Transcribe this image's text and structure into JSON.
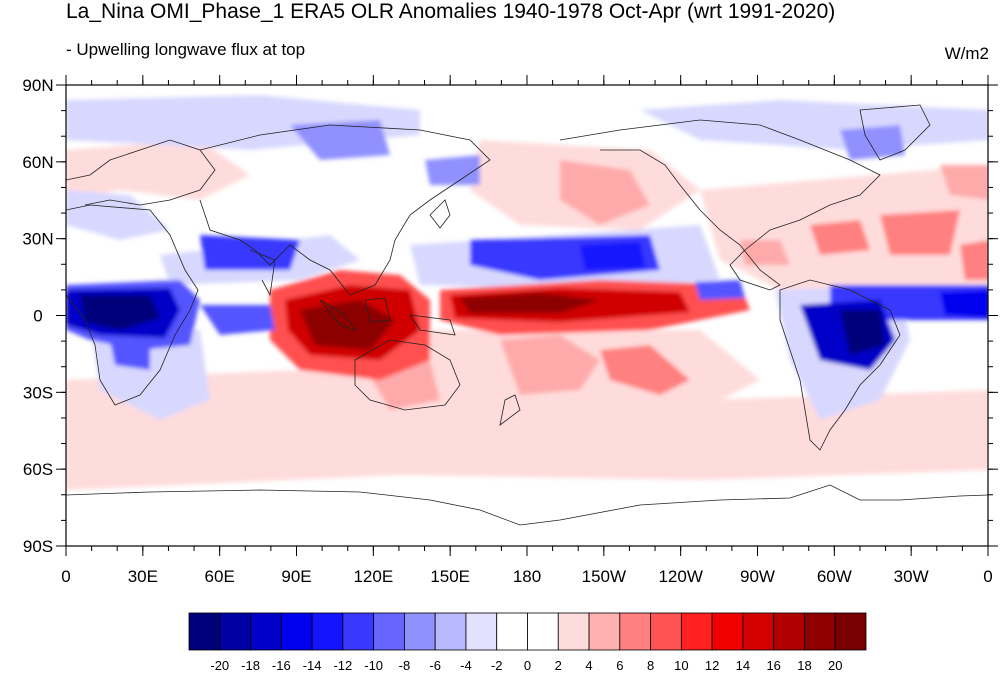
{
  "title": "La_Nina OMI_Phase_1 ERA5 OLR Anomalies 1940-1978 Oct-Apr (wrt 1991-2020)",
  "subtitle": "- Upwelling longwave flux at top",
  "units": "W/m2",
  "map": {
    "lat_labels": [
      "90N",
      "60N",
      "30N",
      "0",
      "30S",
      "60S",
      "90S"
    ],
    "lon_labels": [
      "0",
      "30E",
      "60E",
      "90E",
      "120E",
      "150E",
      "180",
      "150W",
      "120W",
      "90W",
      "60W",
      "30W",
      "0"
    ],
    "lat_values": [
      90,
      60,
      30,
      0,
      -30,
      -60,
      -90
    ],
    "lon_values": [
      0,
      30,
      60,
      90,
      120,
      150,
      180,
      210,
      240,
      270,
      300,
      330,
      360
    ]
  },
  "colorbar": {
    "labels": [
      "-20",
      "-18",
      "-16",
      "-14",
      "-12",
      "-10",
      "-8",
      "-6",
      "-4",
      "-2",
      "0",
      "2",
      "4",
      "6",
      "8",
      "10",
      "12",
      "14",
      "16",
      "18",
      "20"
    ],
    "colors": [
      "#00007a",
      "#0000a3",
      "#0000c8",
      "#0000ee",
      "#1414ff",
      "#3838ff",
      "#6666ff",
      "#9090ff",
      "#b8b8ff",
      "#e2e2ff",
      "#ffffff",
      "#ffffff",
      "#ffdcdc",
      "#ffb0b0",
      "#ff8080",
      "#ff5252",
      "#ff2020",
      "#f00000",
      "#d20000",
      "#b00000",
      "#8e0000",
      "#780000"
    ]
  },
  "palette": {
    "deep_blue": "#0000a8",
    "blue": "#2c2cff",
    "light_blue": "#c8c8ff",
    "light_red": "#ffd2d2",
    "red": "#ff3030",
    "deep_red": "#8c0000",
    "coast": "#222222"
  }
}
